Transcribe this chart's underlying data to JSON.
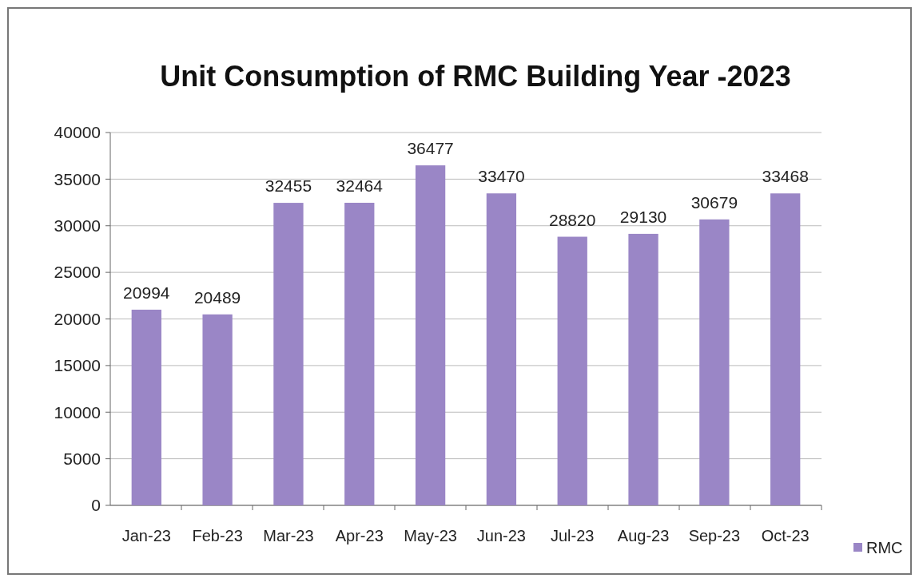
{
  "chart_data": {
    "type": "bar",
    "title": "Unit Consumption of RMC Building Year -2023",
    "categories": [
      "Jan-23",
      "Feb-23",
      "Mar-23",
      "Apr-23",
      "May-23",
      "Jun-23",
      "Jul-23",
      "Aug-23",
      "Sep-23",
      "Oct-23"
    ],
    "series": [
      {
        "name": "RMC",
        "color": "#9a86c6",
        "values": [
          20994,
          20489,
          32455,
          32464,
          36477,
          33470,
          28820,
          29130,
          30679,
          33468
        ]
      }
    ],
    "ylim": [
      0,
      40000
    ],
    "yticks": [
      0,
      5000,
      10000,
      15000,
      20000,
      25000,
      30000,
      35000,
      40000
    ],
    "grid": "y",
    "legend": "right",
    "data_labels": true
  }
}
